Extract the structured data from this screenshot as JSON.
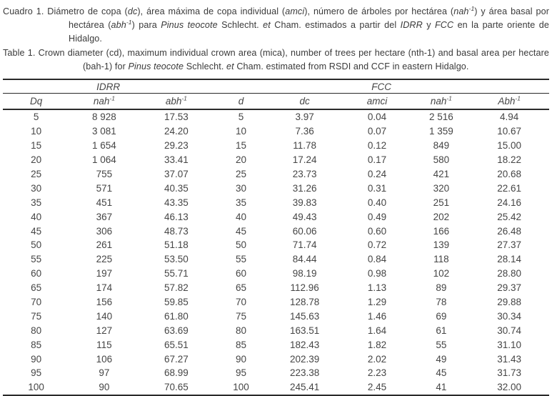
{
  "caption_es": {
    "segments": [
      {
        "t": "Cuadro 1. Diámetro de copa ("
      },
      {
        "t": "dc",
        "i": true
      },
      {
        "t": "), área máxima de copa individual ("
      },
      {
        "t": "amci",
        "i": true
      },
      {
        "t": "), número de árboles por hectárea ("
      },
      {
        "t": "nah",
        "i": true
      },
      {
        "t": "-1",
        "i": true,
        "sup": true
      },
      {
        "t": ") y área basal por hectárea ("
      },
      {
        "t": "abh",
        "i": true
      },
      {
        "t": "-1",
        "i": true,
        "sup": true
      },
      {
        "t": ") para "
      },
      {
        "t": "Pinus teocote",
        "i": true
      },
      {
        "t": " Schlecht. "
      },
      {
        "t": "et",
        "i": true
      },
      {
        "t": " Cham. estimados a partir del "
      },
      {
        "t": "IDRR",
        "i": true
      },
      {
        "t": " y "
      },
      {
        "t": "FCC",
        "i": true
      },
      {
        "t": " en la parte oriente de Hidalgo."
      }
    ]
  },
  "caption_en": {
    "segments": [
      {
        "t": "Table 1. Crown diameter (cd), maximum individual crown area (mica), number of trees per hectare (nth-1) and basal area per hectare (bah-1) for "
      },
      {
        "t": "Pinus teocote",
        "i": true
      },
      {
        "t": " Schlecht. "
      },
      {
        "t": "et",
        "i": true
      },
      {
        "t": " Cham. estimated from RSDI and CCF in eastern Hidalgo."
      }
    ]
  },
  "table": {
    "group_headers": [
      {
        "colspan": 3,
        "segments": [
          {
            "t": "IDRR",
            "i": true
          }
        ]
      },
      {
        "colspan": 5,
        "segments": [
          {
            "t": "FCC",
            "i": true
          }
        ]
      }
    ],
    "columns": [
      {
        "segments": [
          {
            "t": "Dq",
            "i": true
          }
        ]
      },
      {
        "segments": [
          {
            "t": "nah",
            "i": true
          },
          {
            "t": "-1",
            "i": true,
            "sup": true
          }
        ]
      },
      {
        "segments": [
          {
            "t": "abh",
            "i": true
          },
          {
            "t": "-1",
            "i": true,
            "sup": true
          }
        ]
      },
      {
        "segments": [
          {
            "t": "d",
            "i": true
          }
        ]
      },
      {
        "segments": [
          {
            "t": "dc",
            "i": true
          }
        ]
      },
      {
        "segments": [
          {
            "t": "amci",
            "i": true
          }
        ]
      },
      {
        "segments": [
          {
            "t": "nah",
            "i": true
          },
          {
            "t": "-1",
            "i": true,
            "sup": true
          }
        ]
      },
      {
        "segments": [
          {
            "t": "Abh",
            "i": true
          },
          {
            "t": "-1",
            "i": true,
            "sup": true
          }
        ]
      }
    ],
    "rows": [
      [
        "5",
        "8 928",
        "17.53",
        "5",
        "3.97",
        "0.04",
        "2 516",
        "4.94"
      ],
      [
        "10",
        "3 081",
        "24.20",
        "10",
        "7.36",
        "0.07",
        "1 359",
        "10.67"
      ],
      [
        "15",
        "1 654",
        "29.23",
        "15",
        "11.78",
        "0.12",
        "849",
        "15.00"
      ],
      [
        "20",
        "1 064",
        "33.41",
        "20",
        "17.24",
        "0.17",
        "580",
        "18.22"
      ],
      [
        "25",
        "755",
        "37.07",
        "25",
        "23.73",
        "0.24",
        "421",
        "20.68"
      ],
      [
        "30",
        "571",
        "40.35",
        "30",
        "31.26",
        "0.31",
        "320",
        "22.61"
      ],
      [
        "35",
        "451",
        "43.35",
        "35",
        "39.83",
        "0.40",
        "251",
        "24.16"
      ],
      [
        "40",
        "367",
        "46.13",
        "40",
        "49.43",
        "0.49",
        "202",
        "25.42"
      ],
      [
        "45",
        "306",
        "48.73",
        "45",
        "60.06",
        "0.60",
        "166",
        "26.48"
      ],
      [
        "50",
        "261",
        "51.18",
        "50",
        "71.74",
        "0.72",
        "139",
        "27.37"
      ],
      [
        "55",
        "225",
        "53.50",
        "55",
        "84.44",
        "0.84",
        "118",
        "28.14"
      ],
      [
        "60",
        "197",
        "55.71",
        "60",
        "98.19",
        "0.98",
        "102",
        "28.80"
      ],
      [
        "65",
        "174",
        "57.82",
        "65",
        "112.96",
        "1.13",
        "89",
        "29.37"
      ],
      [
        "70",
        "156",
        "59.85",
        "70",
        "128.78",
        "1.29",
        "78",
        "29.88"
      ],
      [
        "75",
        "140",
        "61.80",
        "75",
        "145.63",
        "1.46",
        "69",
        "30.34"
      ],
      [
        "80",
        "127",
        "63.69",
        "80",
        "163.51",
        "1.64",
        "61",
        "30.74"
      ],
      [
        "85",
        "115",
        "65.51",
        "85",
        "182.43",
        "1.82",
        "55",
        "31.10"
      ],
      [
        "90",
        "106",
        "67.27",
        "90",
        "202.39",
        "2.02",
        "49",
        "31.43"
      ],
      [
        "95",
        "97",
        "68.99",
        "95",
        "223.38",
        "2.23",
        "45",
        "31.73"
      ],
      [
        "100",
        "90",
        "70.65",
        "100",
        "245.41",
        "2.45",
        "41",
        "32.00"
      ]
    ]
  }
}
